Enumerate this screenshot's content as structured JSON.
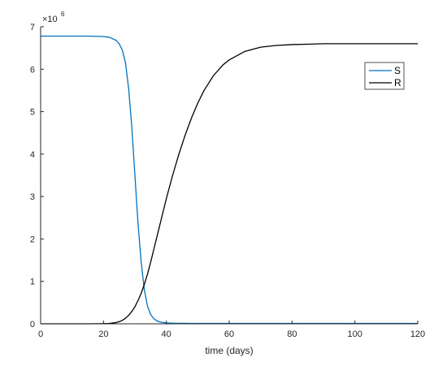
{
  "chart_data": {
    "type": "line",
    "title": "",
    "xlabel": "time (days)",
    "ylabel": "",
    "y_scale_label": {
      "base": "×10",
      "exponent": "6"
    },
    "xlim": [
      0,
      120
    ],
    "ylim": [
      0,
      7
    ],
    "x_ticks": [
      "0",
      "20",
      "40",
      "60",
      "80",
      "100",
      "120"
    ],
    "y_ticks": [
      "0",
      "1",
      "2",
      "3",
      "4",
      "5",
      "6",
      "7"
    ],
    "grid": false,
    "legend_position": "top-right",
    "colors": {
      "S": "#0072BD",
      "R": "#000000",
      "axis": "#262626"
    },
    "x": [
      0,
      5,
      10,
      15,
      20,
      22,
      24,
      25,
      26,
      27,
      28,
      29,
      30,
      31,
      32,
      33,
      34,
      35,
      36,
      37,
      38,
      40,
      42,
      44,
      46,
      48,
      50,
      52,
      55,
      58,
      60,
      65,
      70,
      75,
      80,
      90,
      100,
      110,
      120
    ],
    "series": [
      {
        "name": "S",
        "values": [
          6.78,
          6.78,
          6.78,
          6.78,
          6.77,
          6.75,
          6.68,
          6.6,
          6.45,
          6.15,
          5.55,
          4.65,
          3.5,
          2.35,
          1.45,
          0.8,
          0.42,
          0.22,
          0.12,
          0.07,
          0.04,
          0.02,
          0.015,
          0.012,
          0.011,
          0.01,
          0.01,
          0.01,
          0.01,
          0.01,
          0.01,
          0.01,
          0.01,
          0.01,
          0.01,
          0.01,
          0.01,
          0.01,
          0.01
        ]
      },
      {
        "name": "R",
        "values": [
          0,
          0,
          0,
          0,
          0.005,
          0.01,
          0.03,
          0.05,
          0.08,
          0.13,
          0.2,
          0.29,
          0.4,
          0.55,
          0.72,
          0.93,
          1.17,
          1.45,
          1.75,
          2.05,
          2.35,
          2.95,
          3.5,
          4.0,
          4.45,
          4.85,
          5.2,
          5.5,
          5.85,
          6.1,
          6.22,
          6.42,
          6.52,
          6.56,
          6.58,
          6.6,
          6.6,
          6.6,
          6.6
        ]
      }
    ]
  }
}
